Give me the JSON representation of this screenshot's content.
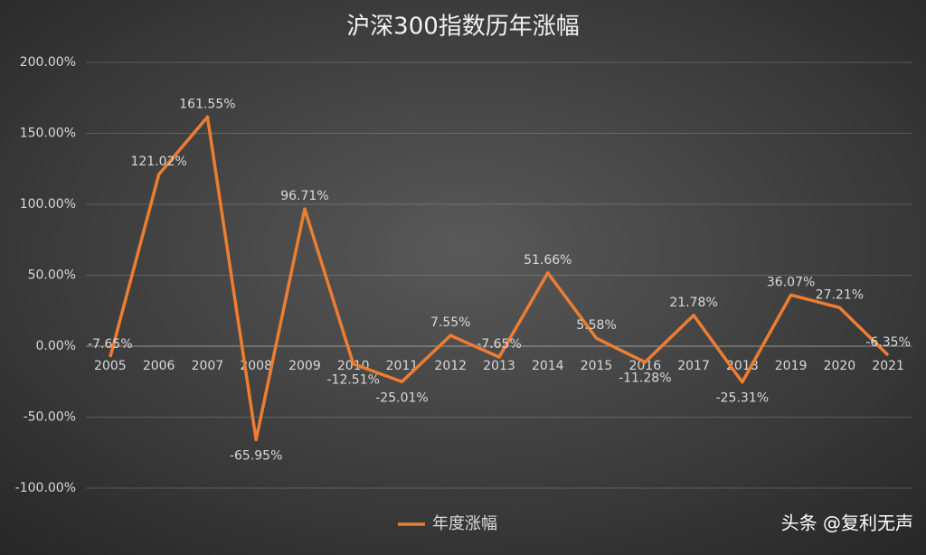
{
  "chart_data": {
    "type": "line",
    "title": "沪深300指数历年涨幅",
    "categories": [
      "2005",
      "2006",
      "2007",
      "2008",
      "2009",
      "2010",
      "2011",
      "2012",
      "2013",
      "2014",
      "2015",
      "2016",
      "2017",
      "2018",
      "2019",
      "2020",
      "2021"
    ],
    "series": [
      {
        "name": "年度涨幅",
        "color": "#ed7d31",
        "values": [
          -7.65,
          121.02,
          161.55,
          -65.95,
          96.71,
          -12.51,
          -25.01,
          7.55,
          -7.65,
          51.66,
          5.58,
          -11.28,
          21.78,
          -25.31,
          36.07,
          27.21,
          -6.35
        ],
        "value_labels": [
          "-7.65%",
          "121.02%",
          "161.55%",
          "-65.95%",
          "96.71%",
          "-12.51%",
          "-25.01%",
          "7.55%",
          "-7.65%",
          "51.66%",
          "5.58%",
          "-11.28%",
          "21.78%",
          "-25.31%",
          "36.07%",
          "27.21%",
          "-6.35%"
        ]
      }
    ],
    "ylim": [
      -100,
      200
    ],
    "yticks": [
      {
        "value": -100,
        "label": "-100.00%"
      },
      {
        "value": -50,
        "label": "-50.00%"
      },
      {
        "value": 0,
        "label": "0.00%"
      },
      {
        "value": 50,
        "label": "50.00%"
      },
      {
        "value": 100,
        "label": "100.00%"
      },
      {
        "value": 150,
        "label": "150.00%"
      },
      {
        "value": 200,
        "label": "200.00%"
      }
    ],
    "grid": true,
    "legend": "bottom",
    "watermark": "头条 @复利无声"
  }
}
